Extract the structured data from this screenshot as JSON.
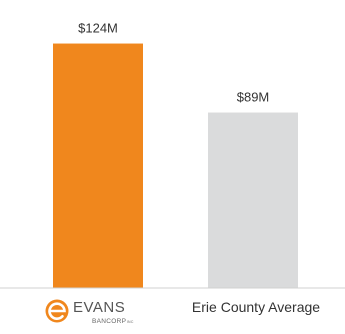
{
  "chart_data": {
    "type": "bar",
    "categories": [
      "EVANS BANCORP",
      "Erie County Average"
    ],
    "values": [
      124,
      89
    ],
    "value_labels": [
      "$124M",
      "$89M"
    ],
    "colors": [
      "#f0871d",
      "#dadbdc"
    ],
    "ylim": [
      0,
      140
    ],
    "title": "",
    "xlabel": "",
    "ylabel": "",
    "grid": false,
    "legend": "none"
  },
  "logo": {
    "icon": "evans-e-icon",
    "word": "EVANS",
    "sub": "BANCORP",
    "sub_suffix": "INC",
    "color": "#f0871d"
  }
}
